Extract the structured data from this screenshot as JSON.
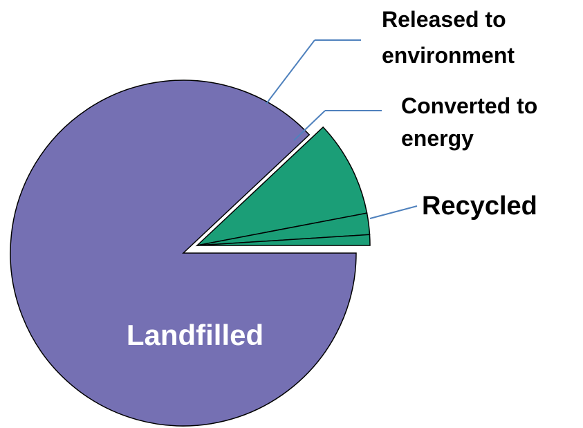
{
  "chart_data": {
    "type": "pie",
    "categories": [
      "Landfilled",
      "Recycled",
      "Converted to energy",
      "Released to environment"
    ],
    "values": [
      88,
      9,
      2,
      1
    ],
    "colors": [
      "#7570b3",
      "#1b9e77",
      "#1b9e77",
      "#1b9e77"
    ]
  }
}
